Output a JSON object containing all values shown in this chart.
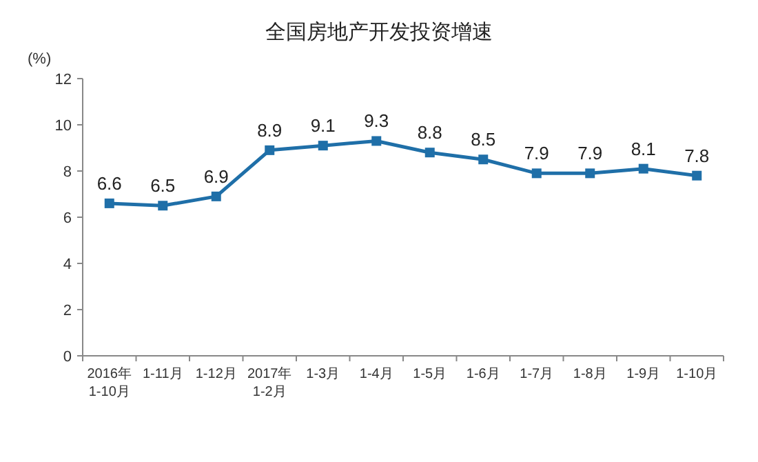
{
  "chart_data": {
    "type": "line",
    "title": "全国房地产开发投资增速",
    "ylabel": "(%)",
    "categories": [
      "2016年\n1-10月",
      "1-11月",
      "1-12月",
      "2017年\n1-2月",
      "1-3月",
      "1-4月",
      "1-5月",
      "1-6月",
      "1-7月",
      "1-8月",
      "1-9月",
      "1-10月"
    ],
    "series": [
      {
        "color": "#1f6fa8",
        "values": [
          6.6,
          6.5,
          6.9,
          8.9,
          9.1,
          9.3,
          8.8,
          8.5,
          7.9,
          7.9,
          8.1,
          7.8
        ]
      }
    ],
    "ylim": [
      0,
      12
    ],
    "yticks": [
      0,
      2,
      4,
      6,
      8,
      10,
      12
    ],
    "marker": "square",
    "line_style": "solid",
    "data_labels": true,
    "grid": false
  }
}
